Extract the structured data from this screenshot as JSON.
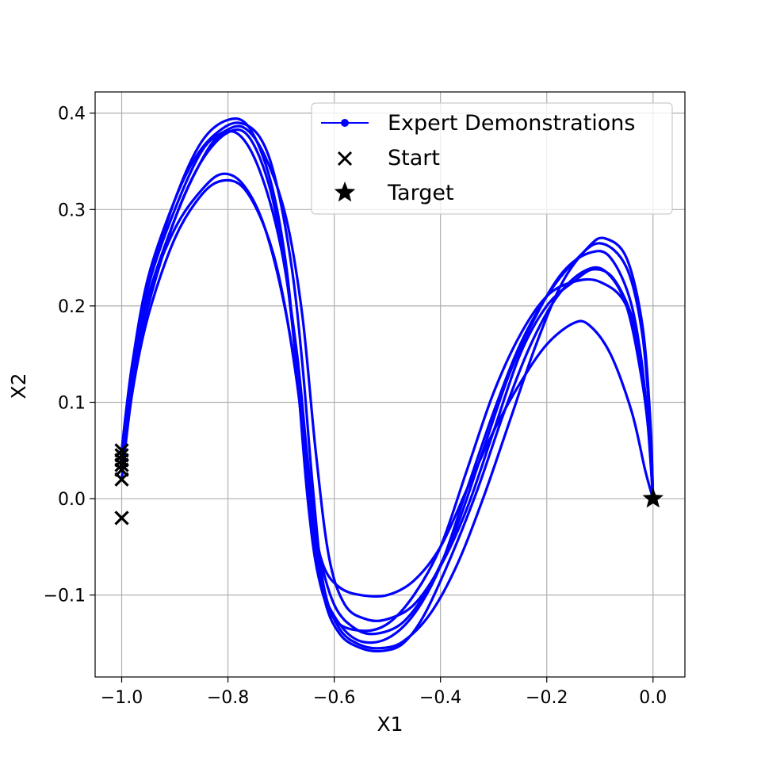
{
  "chart_data": {
    "type": "line",
    "title": "",
    "xlabel": "X1",
    "ylabel": "X2",
    "xlim": [
      -1.05,
      0.06
    ],
    "ylim": [
      -0.185,
      0.422
    ],
    "grid": true,
    "legend_placement": "top-right",
    "x_ticks": [
      -1.0,
      -0.8,
      -0.6,
      -0.4,
      -0.2,
      0.0
    ],
    "x_tick_labels": [
      "−1.0",
      "−0.8",
      "−0.6",
      "−0.4",
      "−0.2",
      "0.0"
    ],
    "y_ticks": [
      -0.1,
      0.0,
      0.1,
      0.2,
      0.3,
      0.4
    ],
    "y_tick_labels": [
      "−0.1",
      "0.0",
      "0.1",
      "0.2",
      "0.3",
      "0.4"
    ],
    "legend": [
      {
        "label": "Expert Demonstrations",
        "marker": "line-dot"
      },
      {
        "label": "Start",
        "marker": "x"
      },
      {
        "label": "Target",
        "marker": "star"
      }
    ],
    "colors": {
      "series": "#0000ff",
      "markers": "#000000",
      "grid": "#b0b0b0"
    },
    "series": [
      {
        "values": [
          [
            -1.0,
            0.05
          ],
          [
            -0.98,
            0.14
          ],
          [
            -0.95,
            0.22
          ],
          [
            -0.9,
            0.31
          ],
          [
            -0.85,
            0.37
          ],
          [
            -0.8,
            0.393
          ],
          [
            -0.76,
            0.385
          ],
          [
            -0.72,
            0.33
          ],
          [
            -0.69,
            0.24
          ],
          [
            -0.665,
            0.1
          ],
          [
            -0.645,
            -0.02
          ],
          [
            -0.625,
            -0.09
          ],
          [
            -0.59,
            -0.13
          ],
          [
            -0.55,
            -0.148
          ],
          [
            -0.5,
            -0.145
          ],
          [
            -0.45,
            -0.12
          ],
          [
            -0.4,
            -0.07
          ],
          [
            -0.35,
            0.01
          ],
          [
            -0.3,
            0.09
          ],
          [
            -0.25,
            0.16
          ],
          [
            -0.2,
            0.21
          ],
          [
            -0.15,
            0.245
          ],
          [
            -0.1,
            0.265
          ],
          [
            -0.05,
            0.24
          ],
          [
            -0.02,
            0.17
          ],
          [
            -0.005,
            0.07
          ],
          [
            0.0,
            0.0
          ]
        ]
      },
      {
        "values": [
          [
            -1.0,
            0.03
          ],
          [
            -0.98,
            0.12
          ],
          [
            -0.95,
            0.2
          ],
          [
            -0.9,
            0.29
          ],
          [
            -0.85,
            0.35
          ],
          [
            -0.8,
            0.38
          ],
          [
            -0.76,
            0.375
          ],
          [
            -0.72,
            0.32
          ],
          [
            -0.69,
            0.23
          ],
          [
            -0.67,
            0.13
          ],
          [
            -0.65,
            0.0
          ],
          [
            -0.63,
            -0.08
          ],
          [
            -0.6,
            -0.125
          ],
          [
            -0.55,
            -0.137
          ],
          [
            -0.5,
            -0.13
          ],
          [
            -0.45,
            -0.1
          ],
          [
            -0.4,
            -0.05
          ],
          [
            -0.35,
            0.03
          ],
          [
            -0.3,
            0.11
          ],
          [
            -0.25,
            0.17
          ],
          [
            -0.2,
            0.21
          ],
          [
            -0.15,
            0.225
          ],
          [
            -0.1,
            0.225
          ],
          [
            -0.05,
            0.2
          ],
          [
            -0.02,
            0.13
          ],
          [
            -0.005,
            0.05
          ],
          [
            0.0,
            0.0
          ]
        ]
      },
      {
        "values": [
          [
            -1.0,
            0.045
          ],
          [
            -0.98,
            0.13
          ],
          [
            -0.95,
            0.21
          ],
          [
            -0.9,
            0.28
          ],
          [
            -0.85,
            0.32
          ],
          [
            -0.81,
            0.337
          ],
          [
            -0.77,
            0.325
          ],
          [
            -0.73,
            0.28
          ],
          [
            -0.69,
            0.19
          ],
          [
            -0.66,
            0.08
          ],
          [
            -0.64,
            -0.02
          ],
          [
            -0.62,
            -0.07
          ],
          [
            -0.59,
            -0.092
          ],
          [
            -0.55,
            -0.1
          ],
          [
            -0.5,
            -0.1
          ],
          [
            -0.45,
            -0.085
          ],
          [
            -0.4,
            -0.05
          ],
          [
            -0.35,
            0.01
          ],
          [
            -0.3,
            0.07
          ],
          [
            -0.25,
            0.12
          ],
          [
            -0.2,
            0.16
          ],
          [
            -0.15,
            0.182
          ],
          [
            -0.12,
            0.18
          ],
          [
            -0.08,
            0.15
          ],
          [
            -0.04,
            0.09
          ],
          [
            -0.015,
            0.03
          ],
          [
            0.0,
            0.0
          ]
        ]
      },
      {
        "values": [
          [
            -1.0,
            0.02
          ],
          [
            -0.98,
            0.11
          ],
          [
            -0.95,
            0.19
          ],
          [
            -0.9,
            0.27
          ],
          [
            -0.85,
            0.315
          ],
          [
            -0.81,
            0.33
          ],
          [
            -0.77,
            0.322
          ],
          [
            -0.73,
            0.28
          ],
          [
            -0.7,
            0.22
          ],
          [
            -0.67,
            0.12
          ],
          [
            -0.645,
            0.0
          ],
          [
            -0.62,
            -0.1
          ],
          [
            -0.59,
            -0.14
          ],
          [
            -0.55,
            -0.155
          ],
          [
            -0.51,
            -0.158
          ],
          [
            -0.47,
            -0.15
          ],
          [
            -0.43,
            -0.12
          ],
          [
            -0.38,
            -0.06
          ],
          [
            -0.33,
            0.01
          ],
          [
            -0.28,
            0.09
          ],
          [
            -0.23,
            0.16
          ],
          [
            -0.18,
            0.21
          ],
          [
            -0.13,
            0.236
          ],
          [
            -0.09,
            0.236
          ],
          [
            -0.05,
            0.2
          ],
          [
            -0.02,
            0.12
          ],
          [
            -0.005,
            0.05
          ],
          [
            0.0,
            0.0
          ]
        ]
      },
      {
        "values": [
          [
            -1.0,
            0.04
          ],
          [
            -0.98,
            0.13
          ],
          [
            -0.95,
            0.22
          ],
          [
            -0.9,
            0.3
          ],
          [
            -0.85,
            0.36
          ],
          [
            -0.81,
            0.38
          ],
          [
            -0.77,
            0.385
          ],
          [
            -0.73,
            0.355
          ],
          [
            -0.69,
            0.29
          ],
          [
            -0.66,
            0.19
          ],
          [
            -0.635,
            0.05
          ],
          [
            -0.61,
            -0.06
          ],
          [
            -0.58,
            -0.11
          ],
          [
            -0.54,
            -0.125
          ],
          [
            -0.5,
            -0.125
          ],
          [
            -0.45,
            -0.11
          ],
          [
            -0.4,
            -0.07
          ],
          [
            -0.35,
            -0.01
          ],
          [
            -0.3,
            0.07
          ],
          [
            -0.25,
            0.15
          ],
          [
            -0.2,
            0.2
          ],
          [
            -0.15,
            0.225
          ],
          [
            -0.11,
            0.238
          ],
          [
            -0.07,
            0.225
          ],
          [
            -0.03,
            0.17
          ],
          [
            -0.01,
            0.08
          ],
          [
            0.0,
            0.0
          ]
        ]
      },
      {
        "values": [
          [
            -1.0,
            0.035
          ],
          [
            -0.98,
            0.13
          ],
          [
            -0.95,
            0.21
          ],
          [
            -0.9,
            0.29
          ],
          [
            -0.86,
            0.34
          ],
          [
            -0.82,
            0.375
          ],
          [
            -0.78,
            0.378
          ],
          [
            -0.74,
            0.34
          ],
          [
            -0.7,
            0.26
          ],
          [
            -0.67,
            0.15
          ],
          [
            -0.65,
            0.04
          ],
          [
            -0.63,
            -0.05
          ],
          [
            -0.6,
            -0.11
          ],
          [
            -0.56,
            -0.135
          ],
          [
            -0.52,
            -0.14
          ],
          [
            -0.47,
            -0.128
          ],
          [
            -0.42,
            -0.09
          ],
          [
            -0.37,
            -0.03
          ],
          [
            -0.32,
            0.05
          ],
          [
            -0.27,
            0.13
          ],
          [
            -0.22,
            0.19
          ],
          [
            -0.17,
            0.235
          ],
          [
            -0.12,
            0.255
          ],
          [
            -0.08,
            0.25
          ],
          [
            -0.04,
            0.2
          ],
          [
            -0.015,
            0.11
          ],
          [
            0.0,
            0.0
          ]
        ]
      },
      {
        "values": [
          [
            -1.0,
            0.05
          ],
          [
            -0.98,
            0.14
          ],
          [
            -0.95,
            0.23
          ],
          [
            -0.9,
            0.31
          ],
          [
            -0.86,
            0.355
          ],
          [
            -0.82,
            0.38
          ],
          [
            -0.78,
            0.39
          ],
          [
            -0.74,
            0.375
          ],
          [
            -0.71,
            0.33
          ],
          [
            -0.68,
            0.24
          ],
          [
            -0.66,
            0.14
          ],
          [
            -0.64,
            0.01
          ],
          [
            -0.62,
            -0.09
          ],
          [
            -0.59,
            -0.135
          ],
          [
            -0.55,
            -0.152
          ],
          [
            -0.51,
            -0.155
          ],
          [
            -0.47,
            -0.148
          ],
          [
            -0.42,
            -0.12
          ],
          [
            -0.37,
            -0.07
          ],
          [
            -0.32,
            0.0
          ],
          [
            -0.27,
            0.08
          ],
          [
            -0.22,
            0.16
          ],
          [
            -0.17,
            0.225
          ],
          [
            -0.12,
            0.262
          ],
          [
            -0.09,
            0.27
          ],
          [
            -0.05,
            0.25
          ],
          [
            -0.02,
            0.18
          ],
          [
            -0.005,
            0.08
          ],
          [
            0.0,
            0.0
          ]
        ]
      }
    ],
    "start_points": [
      [
        -1.0,
        0.05
      ],
      [
        -1.0,
        0.045
      ],
      [
        -1.0,
        0.04
      ],
      [
        -1.0,
        0.035
      ],
      [
        -1.0,
        0.03
      ],
      [
        -1.0,
        0.02
      ],
      [
        -1.0,
        -0.02
      ]
    ],
    "target_point": [
      0.0,
      0.0
    ]
  }
}
